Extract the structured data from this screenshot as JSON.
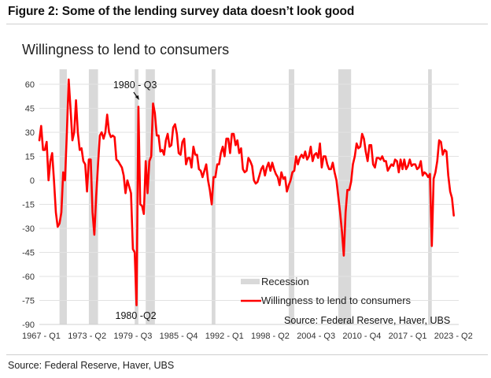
{
  "figure": {
    "title": "Figure 2: Some of the lending survey data doesn’t look good",
    "footer_source": "Source: Federal Reserve, Haver, UBS"
  },
  "chart_data": {
    "type": "line",
    "title": "Willingness to lend to consumers",
    "xlabel": "",
    "ylabel": "",
    "ylim": [
      -90,
      60
    ],
    "xlim": [
      1967.0,
      2023.25
    ],
    "yticks": [
      60,
      45,
      30,
      15,
      0,
      -15,
      -30,
      -45,
      -60,
      -75,
      -90
    ],
    "ytick_labels": [
      "60",
      "45",
      "30",
      "15",
      "0",
      "-15",
      "-30",
      "-45",
      "-60",
      "-75",
      "-90"
    ],
    "xtick_positions": [
      1967.0,
      1973.25,
      1979.5,
      1985.75,
      1992.0,
      1998.25,
      2004.5,
      2010.75,
      2017.0,
      2023.25
    ],
    "xtick_labels": [
      "1967 - Q1",
      "1973 - Q2",
      "1979 - Q3",
      "1985 - Q4",
      "1992 - Q1",
      "1998 - Q2",
      "2004 - Q3",
      "2010 - Q4",
      "2017 - Q1",
      "2023 - Q2"
    ],
    "grid": true,
    "legend_position": "bottom-right",
    "legend": [
      {
        "label": "Recession",
        "kind": "band",
        "color": "#d9d9d9"
      },
      {
        "label": "Willingness to lend to consumers",
        "kind": "line",
        "color": "#ff0000"
      }
    ],
    "inner_source": "Source: Federal Reserve, Haver, UBS",
    "annotations": [
      {
        "text": "1980 - Q3",
        "x": 1980.5,
        "y": 46,
        "arrow": true
      },
      {
        "text": "1980 -Q2",
        "x": 1980.25,
        "y": -78,
        "arrow": false
      }
    ],
    "recessions": [
      [
        1969.75,
        1970.75
      ],
      [
        1973.75,
        1975.0
      ],
      [
        1980.0,
        1980.5
      ],
      [
        1981.5,
        1982.75
      ],
      [
        1990.5,
        1991.0
      ],
      [
        2001.0,
        2001.75
      ],
      [
        2007.75,
        2009.5
      ],
      [
        2020.0,
        2020.5
      ]
    ],
    "series": [
      {
        "name": "Willingness to lend to consumers",
        "color": "#ff0000",
        "points": [
          [
            1967.0,
            25
          ],
          [
            1967.25,
            34
          ],
          [
            1967.5,
            19
          ],
          [
            1967.75,
            19
          ],
          [
            1968.0,
            24
          ],
          [
            1968.25,
            0
          ],
          [
            1968.5,
            12
          ],
          [
            1968.75,
            17
          ],
          [
            1969.0,
            0
          ],
          [
            1969.25,
            -20
          ],
          [
            1969.5,
            -29
          ],
          [
            1969.75,
            -27
          ],
          [
            1970.0,
            -20
          ],
          [
            1970.25,
            5
          ],
          [
            1970.5,
            0
          ],
          [
            1970.75,
            30
          ],
          [
            1971.0,
            63
          ],
          [
            1971.25,
            45
          ],
          [
            1971.5,
            25
          ],
          [
            1971.75,
            30
          ],
          [
            1972.0,
            50
          ],
          [
            1972.25,
            30
          ],
          [
            1972.5,
            19
          ],
          [
            1972.75,
            20
          ],
          [
            1973.0,
            12
          ],
          [
            1973.25,
            10
          ],
          [
            1973.5,
            -7
          ],
          [
            1973.75,
            13
          ],
          [
            1974.0,
            13
          ],
          [
            1974.25,
            -20
          ],
          [
            1974.5,
            -34
          ],
          [
            1974.75,
            -10
          ],
          [
            1975.0,
            10
          ],
          [
            1975.25,
            28
          ],
          [
            1975.5,
            30
          ],
          [
            1975.75,
            26
          ],
          [
            1976.0,
            30
          ],
          [
            1976.25,
            41
          ],
          [
            1976.5,
            30
          ],
          [
            1976.75,
            27
          ],
          [
            1977.0,
            28
          ],
          [
            1977.25,
            27
          ],
          [
            1977.5,
            13
          ],
          [
            1977.75,
            12
          ],
          [
            1978.0,
            10
          ],
          [
            1978.25,
            8
          ],
          [
            1978.5,
            3
          ],
          [
            1978.75,
            -8
          ],
          [
            1979.0,
            0
          ],
          [
            1979.25,
            -4
          ],
          [
            1979.5,
            -8
          ],
          [
            1979.75,
            -43
          ],
          [
            1980.0,
            -45
          ],
          [
            1980.25,
            -78
          ],
          [
            1980.5,
            46
          ],
          [
            1980.75,
            -15
          ],
          [
            1981.0,
            -16
          ],
          [
            1981.25,
            -21
          ],
          [
            1981.5,
            12
          ],
          [
            1981.75,
            -8
          ],
          [
            1982.0,
            12
          ],
          [
            1982.25,
            15
          ],
          [
            1982.5,
            48
          ],
          [
            1982.75,
            42
          ],
          [
            1983.0,
            28
          ],
          [
            1983.25,
            28
          ],
          [
            1983.5,
            18
          ],
          [
            1983.75,
            19
          ],
          [
            1984.0,
            16
          ],
          [
            1984.25,
            25
          ],
          [
            1984.5,
            29
          ],
          [
            1984.75,
            21
          ],
          [
            1985.0,
            22
          ],
          [
            1985.25,
            33
          ],
          [
            1985.5,
            35
          ],
          [
            1985.75,
            29
          ],
          [
            1986.0,
            17
          ],
          [
            1986.25,
            16
          ],
          [
            1986.5,
            24
          ],
          [
            1986.75,
            26
          ],
          [
            1987.0,
            10
          ],
          [
            1987.25,
            14
          ],
          [
            1987.5,
            14
          ],
          [
            1987.75,
            8
          ],
          [
            1988.0,
            21
          ],
          [
            1988.25,
            16
          ],
          [
            1988.5,
            16
          ],
          [
            1988.75,
            7
          ],
          [
            1989.0,
            6
          ],
          [
            1989.25,
            2
          ],
          [
            1989.5,
            6
          ],
          [
            1989.75,
            10
          ],
          [
            1990.0,
            0
          ],
          [
            1990.25,
            -6
          ],
          [
            1990.5,
            -15
          ],
          [
            1990.75,
            2
          ],
          [
            1991.0,
            2
          ],
          [
            1991.25,
            10
          ],
          [
            1991.5,
            10
          ],
          [
            1991.75,
            17
          ],
          [
            1992.0,
            21
          ],
          [
            1992.25,
            15
          ],
          [
            1992.5,
            26
          ],
          [
            1992.75,
            26
          ],
          [
            1993.0,
            17
          ],
          [
            1993.25,
            29
          ],
          [
            1993.5,
            29
          ],
          [
            1993.75,
            22
          ],
          [
            1994.0,
            25
          ],
          [
            1994.25,
            17
          ],
          [
            1994.5,
            20
          ],
          [
            1994.75,
            7
          ],
          [
            1995.0,
            5
          ],
          [
            1995.25,
            6
          ],
          [
            1995.5,
            14
          ],
          [
            1995.75,
            12
          ],
          [
            1996.0,
            9
          ],
          [
            1996.25,
            0
          ],
          [
            1996.5,
            -2
          ],
          [
            1996.75,
            -1
          ],
          [
            1997.0,
            3
          ],
          [
            1997.25,
            7
          ],
          [
            1997.5,
            9
          ],
          [
            1997.75,
            3
          ],
          [
            1998.0,
            8
          ],
          [
            1998.25,
            11
          ],
          [
            1998.5,
            6
          ],
          [
            1998.75,
            11
          ],
          [
            1999.0,
            7
          ],
          [
            1999.25,
            4
          ],
          [
            1999.5,
            2
          ],
          [
            1999.75,
            -3
          ],
          [
            2000.0,
            5
          ],
          [
            2000.25,
            1
          ],
          [
            2000.5,
            2
          ],
          [
            2000.75,
            -7
          ],
          [
            2001.0,
            -3
          ],
          [
            2001.25,
            0
          ],
          [
            2001.5,
            5
          ],
          [
            2001.75,
            6
          ],
          [
            2002.0,
            15
          ],
          [
            2002.25,
            10
          ],
          [
            2002.5,
            14
          ],
          [
            2002.75,
            16
          ],
          [
            2003.0,
            14
          ],
          [
            2003.25,
            18
          ],
          [
            2003.5,
            13
          ],
          [
            2003.75,
            15
          ],
          [
            2004.0,
            21
          ],
          [
            2004.25,
            12
          ],
          [
            2004.5,
            16
          ],
          [
            2004.75,
            17
          ],
          [
            2005.0,
            14
          ],
          [
            2005.25,
            23
          ],
          [
            2005.5,
            8
          ],
          [
            2005.75,
            15
          ],
          [
            2006.0,
            15
          ],
          [
            2006.25,
            10
          ],
          [
            2006.5,
            7
          ],
          [
            2006.75,
            7
          ],
          [
            2007.0,
            11
          ],
          [
            2007.25,
            5
          ],
          [
            2007.5,
            0
          ],
          [
            2007.75,
            -10
          ],
          [
            2008.0,
            -20
          ],
          [
            2008.25,
            -32
          ],
          [
            2008.5,
            -47
          ],
          [
            2008.75,
            -20
          ],
          [
            2009.0,
            -6
          ],
          [
            2009.25,
            -6
          ],
          [
            2009.5,
            -1
          ],
          [
            2009.75,
            10
          ],
          [
            2010.0,
            15
          ],
          [
            2010.25,
            23
          ],
          [
            2010.5,
            20
          ],
          [
            2010.75,
            21
          ],
          [
            2011.0,
            29
          ],
          [
            2011.25,
            26
          ],
          [
            2011.5,
            18
          ],
          [
            2011.75,
            12
          ],
          [
            2012.0,
            22
          ],
          [
            2012.25,
            22
          ],
          [
            2012.5,
            10
          ],
          [
            2012.75,
            8
          ],
          [
            2013.0,
            14
          ],
          [
            2013.25,
            14
          ],
          [
            2013.5,
            13
          ],
          [
            2013.75,
            15
          ],
          [
            2014.0,
            12
          ],
          [
            2014.25,
            12
          ],
          [
            2014.5,
            6
          ],
          [
            2014.75,
            8
          ],
          [
            2015.0,
            10
          ],
          [
            2015.25,
            9
          ],
          [
            2015.5,
            13
          ],
          [
            2015.75,
            12
          ],
          [
            2016.0,
            5
          ],
          [
            2016.25,
            13
          ],
          [
            2016.5,
            7
          ],
          [
            2016.75,
            13
          ],
          [
            2017.0,
            7
          ],
          [
            2017.25,
            9
          ],
          [
            2017.5,
            13
          ],
          [
            2017.75,
            9
          ],
          [
            2018.0,
            10
          ],
          [
            2018.25,
            10
          ],
          [
            2018.5,
            7
          ],
          [
            2018.75,
            8
          ],
          [
            2019.0,
            12
          ],
          [
            2019.25,
            3
          ],
          [
            2019.5,
            5
          ],
          [
            2019.75,
            4
          ],
          [
            2020.0,
            2
          ],
          [
            2020.25,
            4
          ],
          [
            2020.5,
            -41
          ],
          [
            2020.75,
            1
          ],
          [
            2021.0,
            5
          ],
          [
            2021.25,
            12
          ],
          [
            2021.5,
            25
          ],
          [
            2021.75,
            24
          ],
          [
            2022.0,
            16
          ],
          [
            2022.25,
            19
          ],
          [
            2022.5,
            18
          ],
          [
            2022.75,
            3
          ],
          [
            2023.0,
            -7
          ],
          [
            2023.25,
            -11
          ],
          [
            2023.5,
            -22
          ]
        ]
      }
    ]
  }
}
